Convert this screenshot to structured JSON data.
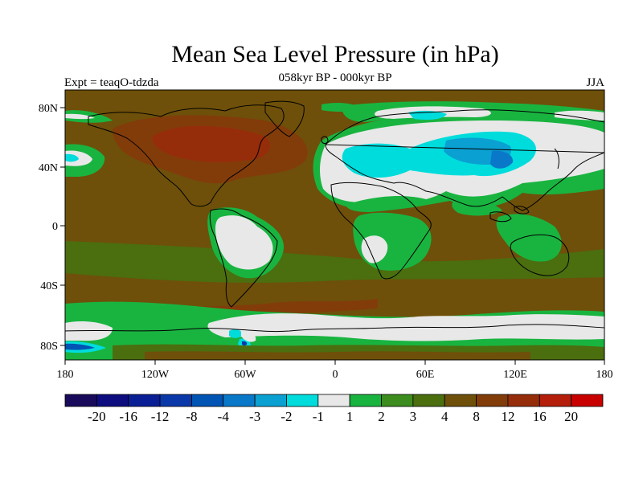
{
  "title": "Mean Sea Level Pressure (in hPa)",
  "subtitle": "058kyr BP - 000kyr BP",
  "left_label": "Expt = teaqO-tdzda",
  "right_label": "JJA",
  "lat_ticks": [
    "80N",
    "40N",
    "0",
    "40S",
    "80S"
  ],
  "lon_ticks": [
    "180",
    "120W",
    "60W",
    "0",
    "60E",
    "120E",
    "180"
  ],
  "colorbar": {
    "colors": [
      "#1a0a5c",
      "#0d0d80",
      "#0a1e96",
      "#0a38a8",
      "#0055b4",
      "#0a78c8",
      "#0aa0d2",
      "#00dcdc",
      "#e8e8e8",
      "#19b440",
      "#3c8c1e",
      "#4b6e0f",
      "#6e500a",
      "#823c0a",
      "#962d0a",
      "#b41e0a",
      "#c80000"
    ],
    "labels": [
      "-20",
      "-16",
      "-12",
      "-8",
      "-4",
      "-3",
      "-2",
      "-1",
      "1",
      "2",
      "3",
      "4",
      "8",
      "12",
      "16",
      "20"
    ]
  }
}
